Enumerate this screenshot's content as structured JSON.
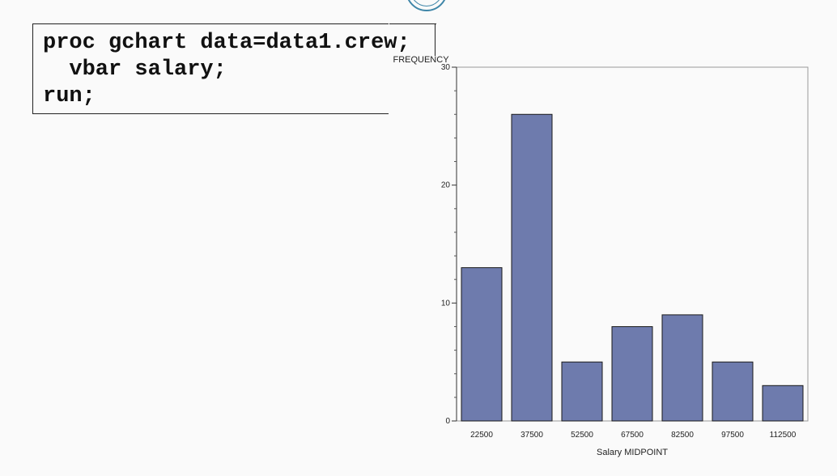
{
  "code": {
    "lines": [
      "proc gchart data=data1.crew;",
      "  vbar salary;",
      "run;"
    ]
  },
  "chart_data": {
    "type": "bar",
    "categories": [
      "22500",
      "37500",
      "52500",
      "67500",
      "82500",
      "97500",
      "112500"
    ],
    "values": [
      13,
      26,
      5,
      8,
      9,
      5,
      3
    ],
    "title": "",
    "xlabel": "Salary MIDPOINT",
    "ylabel": "FREQUENCY",
    "ylim": [
      0,
      30
    ],
    "yticks": [
      0,
      10,
      20,
      30
    ],
    "grid": false,
    "bar_color": "#6e7bad",
    "bar_edge_color": "#1a1a1a"
  }
}
